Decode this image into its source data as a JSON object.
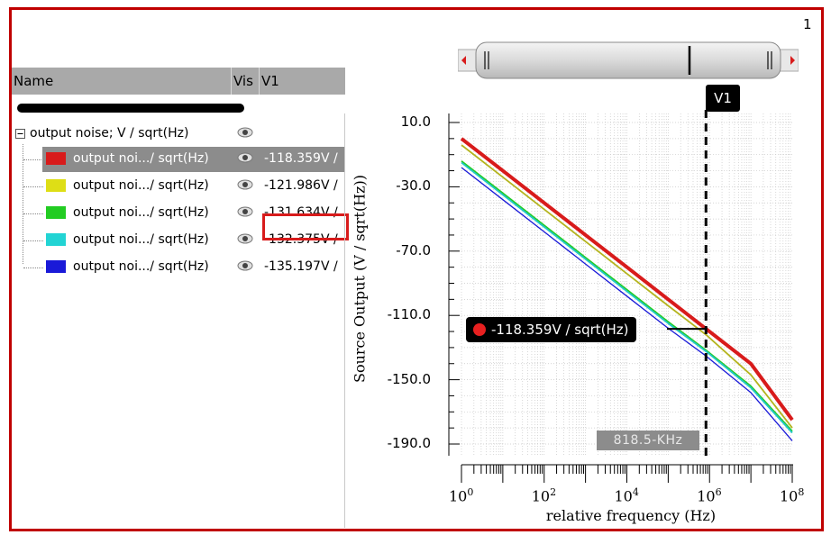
{
  "window_number": "1",
  "table": {
    "columns": [
      "Name",
      "Vis",
      "V1"
    ],
    "root": {
      "label": "output noise; V / sqrt(Hz)"
    },
    "rows": [
      {
        "label": "output noi.../ sqrt(Hz)",
        "color": "#d81b1b",
        "value": "-118.359V /",
        "selected": true
      },
      {
        "label": "output noi.../ sqrt(Hz)",
        "color": "#dede16",
        "value": "-121.986V /",
        "selected": false
      },
      {
        "label": "output noi.../ sqrt(Hz)",
        "color": "#22cc22",
        "value": "-131.634V /",
        "selected": false
      },
      {
        "label": "output noi.../ sqrt(Hz)",
        "color": "#22d4d4",
        "value": "-132.375V /",
        "selected": false
      },
      {
        "label": "output noi.../ sqrt(Hz)",
        "color": "#1a1ad8",
        "value": "-135.197V /",
        "selected": false
      }
    ]
  },
  "cursor": {
    "name": "V1",
    "x_readout": "818.5-KHz",
    "marker_label": "-118.359V / sqrt(Hz)",
    "marker_color": "#e82020"
  },
  "chart_data": {
    "type": "line",
    "xlabel": "relative frequency  (Hz)",
    "ylabel": "Source Output  (V / sqrt(Hz))",
    "xscale": "log",
    "xlim": [
      1,
      100000000
    ],
    "ylim": [
      -190,
      10
    ],
    "x_tick_exponents": [
      "0",
      "2",
      "4",
      "6",
      "8"
    ],
    "y_ticks": [
      "10.0",
      "-30.0",
      "-70.0",
      "-110.0",
      "-150.0",
      "-190.0"
    ],
    "grid": true,
    "cursor_x": 818500,
    "series": [
      {
        "color": "#d81b1b",
        "x": [
          1,
          10,
          100,
          1000,
          10000,
          100000,
          818500,
          10000000,
          100000000
        ],
        "y": [
          0,
          -20,
          -40,
          -60,
          -80,
          -100,
          -118.359,
          -140,
          -175
        ]
      },
      {
        "color": "#b4b41e",
        "x": [
          1,
          10,
          100,
          1000,
          10000,
          100000,
          818500,
          10000000,
          100000000
        ],
        "y": [
          -4,
          -24,
          -44,
          -64,
          -84,
          -104,
          -121.986,
          -147,
          -180
        ]
      },
      {
        "color": "#22cc22",
        "x": [
          1,
          10,
          100,
          1000,
          10000,
          100000,
          818500,
          10000000,
          100000000
        ],
        "y": [
          -14,
          -34,
          -54,
          -74,
          -94,
          -114,
          -131.634,
          -154,
          -182
        ]
      },
      {
        "color": "#22c8c8",
        "x": [
          1,
          10,
          100,
          1000,
          10000,
          100000,
          818500,
          10000000,
          100000000
        ],
        "y": [
          -15,
          -35,
          -55,
          -75,
          -95,
          -115,
          -132.375,
          -155,
          -183
        ]
      },
      {
        "color": "#1a1ad8",
        "x": [
          1,
          10,
          100,
          1000,
          10000,
          100000,
          818500,
          10000000,
          100000000
        ],
        "y": [
          -18,
          -38,
          -58,
          -78,
          -98,
          -118,
          -135.197,
          -158,
          -188
        ]
      }
    ]
  }
}
